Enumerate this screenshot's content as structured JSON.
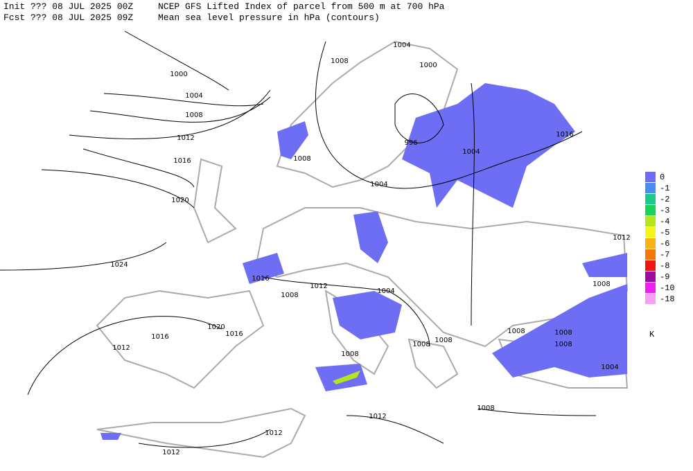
{
  "header": {
    "init": "Init  ??? 08 JUL 2025 00Z",
    "fcst": "Fcst ??? 08 JUL 2025 09Z",
    "title": "NCEP GFS Lifted Index of parcel from 500 m at 700 hPa",
    "subtitle": "Mean sea level pressure in hPa (contours)"
  },
  "legend": {
    "unit": "K",
    "levels": [
      {
        "value": 0,
        "color": "#6e6ef5"
      },
      {
        "value": -1,
        "color": "#4a8cf0"
      },
      {
        "value": -2,
        "color": "#1ec98c"
      },
      {
        "value": -3,
        "color": "#19d25a"
      },
      {
        "value": -4,
        "color": "#b4e61e"
      },
      {
        "value": -5,
        "color": "#f5f51e"
      },
      {
        "value": -6,
        "color": "#f5b414"
      },
      {
        "value": -7,
        "color": "#f5780a"
      },
      {
        "value": -8,
        "color": "#f01414"
      },
      {
        "value": -9,
        "color": "#a00aa0"
      },
      {
        "value": -10,
        "color": "#f01ef0"
      },
      {
        "value": -18,
        "color": "#f5a0f5"
      }
    ]
  },
  "contour_labels": [
    "1000",
    "1004",
    "1008",
    "1012",
    "1016",
    "1020",
    "1024",
    "1004",
    "1008",
    "1000",
    "996",
    "1004",
    "1016",
    "1008",
    "1004",
    "1012",
    "1016",
    "1012",
    "1008",
    "1004",
    "1008",
    "1020",
    "1016",
    "1016",
    "1012",
    "1008",
    "1008",
    "1008",
    "1008",
    "1008",
    "1008",
    "1004",
    "1008",
    "1012",
    "1012",
    "1012"
  ]
}
